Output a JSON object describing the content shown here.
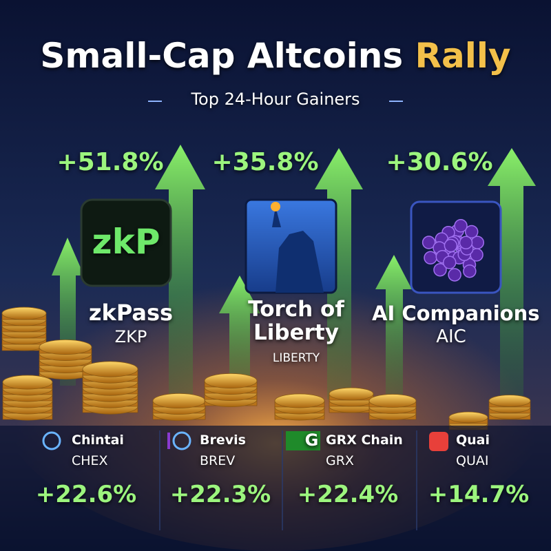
{
  "header": {
    "title": "Small-Cap Altcoins",
    "title_highlight": "Rally",
    "subtitle": "Top 24-Hour Gainers"
  },
  "top_gainers": [
    {
      "gain": "+51.8%",
      "icon_text": "zkP",
      "name": "zkPass",
      "symbol": "ZKP"
    },
    {
      "gain": "+35.8%",
      "name": "Torch of Liberty",
      "symbol": "LIBERTY"
    },
    {
      "gain": "+30.6%",
      "name": "AI Companions",
      "symbol": "AIC"
    }
  ],
  "other_gainers": [
    {
      "name": "Chintai",
      "symbol": "CHEX",
      "gain": "+22.6%"
    },
    {
      "name": "Brevis",
      "symbol": "BREV",
      "gain": "+22.3%"
    },
    {
      "name": "GRX Chain",
      "icon_text": "G",
      "symbol": "GRX",
      "gain": "+22.4%"
    },
    {
      "name": "Quai",
      "symbol": "QUAI",
      "gain": "+14.7%"
    }
  ]
}
